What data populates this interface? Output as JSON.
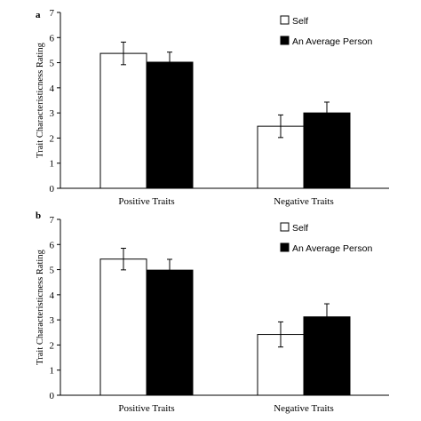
{
  "chart_data": [
    {
      "type": "bar",
      "panel_label": "a",
      "categories": [
        "Positive Traits",
        "Negative Traits"
      ],
      "series": [
        {
          "name": "Self",
          "values": [
            5.37,
            2.47
          ],
          "errors": [
            0.45,
            0.45
          ],
          "color": "#ffffff"
        },
        {
          "name": "An Average Person",
          "values": [
            5.02,
            3.0
          ],
          "errors": [
            0.4,
            0.43
          ],
          "color": "#000000"
        }
      ],
      "ylabel": "Trait Characteristicness Rating",
      "xlabel": "",
      "ylim": [
        0,
        7
      ],
      "yticks": [
        "0",
        "1",
        "2",
        "3",
        "4",
        "5",
        "6",
        "7"
      ],
      "grid": false,
      "legend_position": "top-right"
    },
    {
      "type": "bar",
      "panel_label": "b",
      "categories": [
        "Positive Traits",
        "Negative Traits"
      ],
      "series": [
        {
          "name": "Self",
          "values": [
            5.42,
            2.42
          ],
          "errors": [
            0.43,
            0.5
          ],
          "color": "#ffffff"
        },
        {
          "name": "An Average Person",
          "values": [
            4.98,
            3.12
          ],
          "errors": [
            0.43,
            0.52
          ],
          "color": "#000000"
        }
      ],
      "ylabel": "Trait Characteristicness Rating",
      "xlabel": "",
      "ylim": [
        0,
        7
      ],
      "yticks": [
        "0",
        "1",
        "2",
        "3",
        "4",
        "5",
        "6",
        "7"
      ],
      "grid": false,
      "legend_position": "top-right"
    }
  ]
}
